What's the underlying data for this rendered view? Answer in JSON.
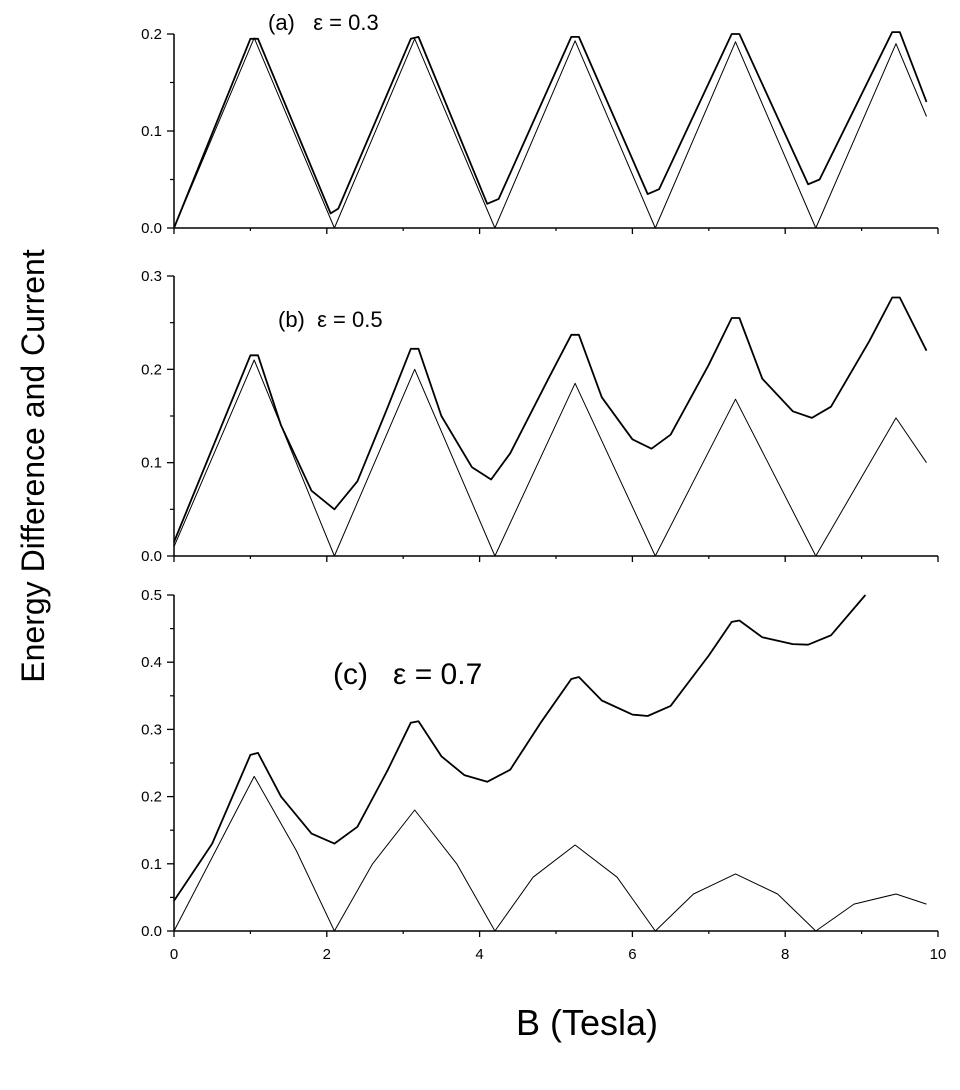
{
  "figure": {
    "ylabel": "Energy Difference and Current",
    "xlabel": "B (Tesla)"
  },
  "chart_data": [
    {
      "type": "line",
      "annotation": "(a)   ε = 0.3",
      "xlim": [
        0,
        10
      ],
      "ylim": [
        0,
        0.2
      ],
      "x_ticks": [
        0,
        2,
        4,
        6,
        8,
        10
      ],
      "y_ticks": [
        "0.0",
        "0.1",
        "0.2"
      ],
      "x_tick_labels_shown": false,
      "series": [
        {
          "style": "thick",
          "x": [
            0,
            1.0,
            1.1,
            2.05,
            2.15,
            3.1,
            3.2,
            4.1,
            4.25,
            5.2,
            5.3,
            6.2,
            6.35,
            7.3,
            7.4,
            8.3,
            8.45,
            9.4,
            9.5,
            9.85
          ],
          "y": [
            0.0,
            0.195,
            0.195,
            0.015,
            0.02,
            0.195,
            0.197,
            0.025,
            0.03,
            0.197,
            0.197,
            0.035,
            0.04,
            0.2,
            0.2,
            0.045,
            0.05,
            0.202,
            0.202,
            0.13
          ]
        },
        {
          "style": "thin",
          "x": [
            0,
            1.05,
            2.1,
            3.15,
            4.2,
            5.25,
            6.3,
            7.35,
            8.4,
            9.45,
            9.85
          ],
          "y": [
            0.0,
            0.196,
            0.0,
            0.195,
            0.0,
            0.193,
            0.0,
            0.192,
            0.0,
            0.19,
            0.115
          ]
        }
      ]
    },
    {
      "type": "line",
      "annotation": "(b)  ε = 0.5",
      "xlim": [
        0,
        10
      ],
      "ylim": [
        0,
        0.3
      ],
      "x_ticks": [
        0,
        2,
        4,
        6,
        8,
        10
      ],
      "y_ticks": [
        "0.0",
        "0.1",
        "0.2",
        "0.3"
      ],
      "x_tick_labels_shown": false,
      "series": [
        {
          "style": "thick",
          "x": [
            0,
            1.0,
            1.1,
            1.4,
            1.8,
            2.1,
            2.4,
            2.8,
            3.1,
            3.2,
            3.5,
            3.9,
            4.15,
            4.4,
            4.9,
            5.2,
            5.3,
            5.6,
            6.0,
            6.25,
            6.5,
            7.0,
            7.3,
            7.4,
            7.7,
            8.1,
            8.35,
            8.6,
            9.1,
            9.4,
            9.5,
            9.85
          ],
          "y": [
            0.015,
            0.215,
            0.215,
            0.14,
            0.07,
            0.05,
            0.08,
            0.16,
            0.222,
            0.222,
            0.15,
            0.095,
            0.082,
            0.11,
            0.19,
            0.237,
            0.237,
            0.17,
            0.125,
            0.115,
            0.13,
            0.205,
            0.255,
            0.255,
            0.19,
            0.155,
            0.148,
            0.16,
            0.23,
            0.277,
            0.277,
            0.22
          ]
        },
        {
          "style": "thin",
          "x": [
            0,
            1.05,
            2.1,
            3.15,
            4.2,
            5.25,
            6.3,
            7.35,
            8.4,
            9.45,
            9.85
          ],
          "y": [
            0.01,
            0.21,
            0.0,
            0.2,
            0.0,
            0.185,
            0.0,
            0.168,
            0.0,
            0.148,
            0.1
          ]
        }
      ]
    },
    {
      "type": "line",
      "annotation": "(c)   ε = 0.7",
      "xlim": [
        0,
        10
      ],
      "ylim": [
        0,
        0.5
      ],
      "x_ticks": [
        "0",
        "2",
        "4",
        "6",
        "8",
        "10"
      ],
      "y_ticks": [
        "0.0",
        "0.1",
        "0.2",
        "0.3",
        "0.4",
        "0.5"
      ],
      "x_tick_labels_shown": true,
      "series": [
        {
          "style": "thick",
          "x": [
            0,
            0.5,
            1.0,
            1.1,
            1.4,
            1.8,
            2.1,
            2.4,
            2.8,
            3.1,
            3.2,
            3.5,
            3.8,
            4.1,
            4.4,
            4.8,
            5.2,
            5.3,
            5.6,
            6.0,
            6.2,
            6.5,
            7.0,
            7.3,
            7.4,
            7.7,
            8.1,
            8.3,
            8.6,
            9.05
          ],
          "y": [
            0.045,
            0.13,
            0.262,
            0.265,
            0.2,
            0.145,
            0.13,
            0.155,
            0.24,
            0.31,
            0.312,
            0.26,
            0.232,
            0.222,
            0.24,
            0.31,
            0.375,
            0.378,
            0.343,
            0.322,
            0.32,
            0.335,
            0.41,
            0.46,
            0.462,
            0.437,
            0.427,
            0.426,
            0.44,
            0.5
          ]
        },
        {
          "style": "thin",
          "x": [
            0,
            1.05,
            1.6,
            2.1,
            2.6,
            3.15,
            3.7,
            4.2,
            4.7,
            5.25,
            5.8,
            6.3,
            6.8,
            7.35,
            7.9,
            8.4,
            8.9,
            9.45,
            9.85
          ],
          "y": [
            0.0,
            0.23,
            0.12,
            0.0,
            0.1,
            0.18,
            0.1,
            0.0,
            0.08,
            0.128,
            0.08,
            0.0,
            0.055,
            0.085,
            0.055,
            0.0,
            0.04,
            0.055,
            0.04
          ]
        }
      ]
    }
  ]
}
